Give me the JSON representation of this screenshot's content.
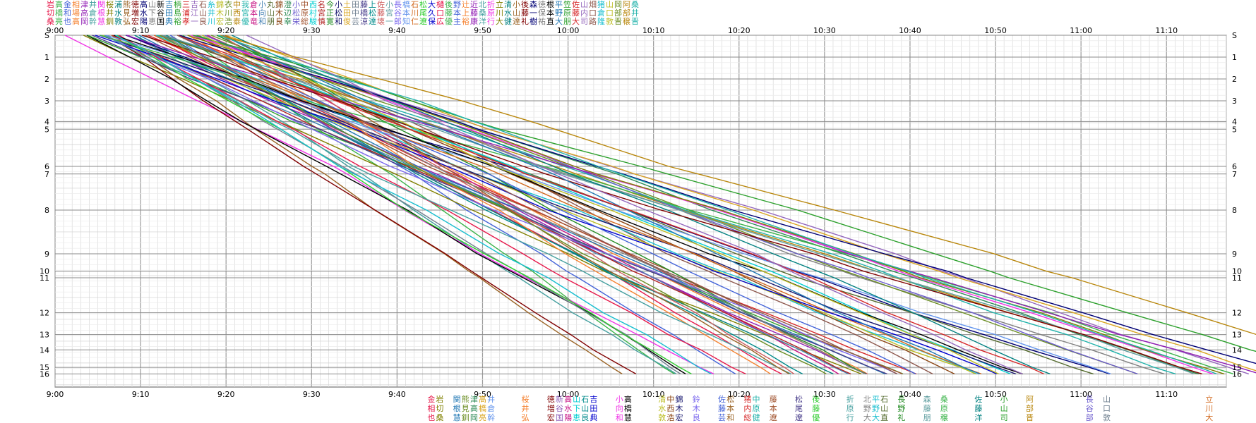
{
  "chart_data": {
    "type": "line",
    "x_unit": "time of day (HH:MM)",
    "y_unit": "segment number",
    "x_ticks": [
      "9:00",
      "9:10",
      "9:20",
      "9:30",
      "9:40",
      "9:50",
      "10:00",
      "10:10",
      "10:20",
      "10:30",
      "10:40",
      "10:50",
      "11:00",
      "11:10"
    ],
    "y_ticks": [
      "S",
      "1",
      "2",
      "3",
      "4",
      "5",
      "6",
      "7",
      "8",
      "9",
      "10",
      "11",
      "12",
      "13",
      "14",
      "15",
      "16"
    ],
    "xlim": [
      "9:00",
      "11:17"
    ],
    "ylim": [
      0,
      16.1
    ],
    "grid": true,
    "top_name_rows": [
      "岩高金相津井関桜浦熊徳高山新吉柄三吉石糸錦衣中我倉小丸錦澄小中西名今小土田藤上佐小長橋石松大樋後野辻近北折立清小後森徳根平笠佐山畑猪山岡阿桑",
      "切橋和場高倉根井水見増水下谷田島浦江山井木川西宮本向山木辺松原村宮正松田中橋松藤宮谷本川尾久口藤本上藤桑原川水山藤一保本野原藤内口倉口部部井",
      "桑亮也高岡幹慧釧敦弘宏陽恵国典裕孝一良川宏浩泰優竜和朋良幸栄総駿慎寛和俊芸涼達壊一郎知仁遼保広優主裕康洋行大健達礼樹祐直大朋大司路隆敦晋穣晋"
    ],
    "bottom_names": [
      {
        "t": "9:44",
        "lines": [
          "金",
          "相",
          "也"
        ]
      },
      {
        "t": "9:45",
        "lines": [
          "岩",
          "切",
          "桑"
        ]
      },
      {
        "t": "9:47",
        "lines": [
          "関",
          "根",
          "慧"
        ]
      },
      {
        "t": "9:48",
        "lines": [
          "熊",
          "見",
          "釧"
        ]
      },
      {
        "t": "9:49",
        "lines": [
          "津",
          "高",
          "岡"
        ]
      },
      {
        "t": "9:50",
        "lines": [
          "高",
          "橋",
          "亮"
        ]
      },
      {
        "t": "9:51",
        "lines": [
          "井",
          "倉",
          "幹"
        ]
      },
      {
        "t": "9:55",
        "lines": [
          "桜",
          "井",
          "弘"
        ]
      },
      {
        "t": "9:58",
        "lines": [
          "徳",
          "増",
          "宏"
        ]
      },
      {
        "t": "9:59",
        "lines": [
          "新",
          "谷",
          "国"
        ]
      },
      {
        "t": "10:00",
        "lines": [
          "高",
          "水",
          "陽"
        ]
      },
      {
        "t": "10:01",
        "lines": [
          "山",
          "下",
          "恵"
        ]
      },
      {
        "t": "10:02",
        "lines": [
          "石",
          "山",
          "良"
        ]
      },
      {
        "t": "10:03",
        "lines": [
          "吉",
          "田",
          "典"
        ]
      },
      {
        "t": "10:06",
        "lines": [
          "小",
          "向",
          "和"
        ]
      },
      {
        "t": "10:07",
        "lines": [
          "高",
          "橋",
          "慧"
        ]
      },
      {
        "t": "10:11",
        "lines": [
          "清",
          "水",
          "敦"
        ]
      },
      {
        "t": "10:12",
        "lines": [
          "中",
          "西",
          "浩"
        ]
      },
      {
        "t": "10:13",
        "lines": [
          "錦",
          "木",
          "宏"
        ]
      },
      {
        "t": "10:15",
        "lines": [
          "鈴",
          "木",
          "良"
        ]
      },
      {
        "t": "10:18",
        "lines": [
          "佐",
          "藤",
          "芸"
        ]
      },
      {
        "t": "10:19",
        "lines": [
          "松",
          "本",
          "和"
        ]
      },
      {
        "t": "10:21",
        "lines": [
          "猪",
          "内",
          "総"
        ]
      },
      {
        "t": "10:22",
        "lines": [
          "中",
          "原",
          "健"
        ]
      },
      {
        "t": "10:24",
        "lines": [
          "藤",
          "本",
          "遼"
        ]
      },
      {
        "t": "10:27",
        "lines": [
          "松",
          "尾",
          "遼"
        ]
      },
      {
        "t": "10:29",
        "lines": [
          "後",
          "藤",
          "優"
        ]
      },
      {
        "t": "10:33",
        "lines": [
          "折",
          "原",
          "行"
        ]
      },
      {
        "t": "10:35",
        "lines": [
          "北",
          "野",
          "大"
        ]
      },
      {
        "t": "10:36",
        "lines": [
          "平",
          "野",
          "大"
        ]
      },
      {
        "t": "10:37",
        "lines": [
          "石",
          "山",
          "直"
        ]
      },
      {
        "t": "10:39",
        "lines": [
          "長",
          "野",
          "礼"
        ]
      },
      {
        "t": "10:42",
        "lines": [
          "森",
          "藤",
          "朋"
        ]
      },
      {
        "t": "10:44",
        "lines": [
          "桑",
          "原",
          "穣"
        ]
      },
      {
        "t": "10:48",
        "lines": [
          "佐",
          "藤",
          "洋"
        ]
      },
      {
        "t": "10:51",
        "lines": [
          "小",
          "山",
          "司"
        ]
      },
      {
        "t": "10:54",
        "lines": [
          "阿",
          "部",
          "晋"
        ]
      },
      {
        "t": "11:01",
        "lines": [
          "長",
          "谷",
          "部"
        ]
      },
      {
        "t": "11:03",
        "lines": [
          "山",
          "口",
          "敦"
        ]
      },
      {
        "t": "11:15",
        "lines": [
          "立",
          "川",
          "大"
        ]
      }
    ],
    "series_colors": [
      "#e6194b",
      "#3cb44b",
      "#4363d8",
      "#f58231",
      "#911eb4",
      "#46a0a0",
      "#f032e6",
      "#808000",
      "#008080",
      "#9a6324",
      "#800000",
      "#000075",
      "#808080",
      "#000000",
      "#1f77b4",
      "#2ca02c",
      "#d62728",
      "#9467bd",
      "#8c564b",
      "#17becf",
      "#bcbd22",
      "#6b8e23",
      "#b8860b",
      "#20b2aa",
      "#c71585",
      "#4682b4",
      "#556b2f",
      "#8b4513",
      "#2e8b57",
      "#6a5acd",
      "#a0522d",
      "#00ced1",
      "#b22222",
      "#228b22",
      "#191970",
      "#daa520",
      "#708090",
      "#483d8b",
      "#008b8b",
      "#cd5c5c",
      "#5f9ea0",
      "#7b68ee",
      "#6495ed",
      "#d2691e",
      "#32cd32",
      "#0000cd"
    ]
  }
}
